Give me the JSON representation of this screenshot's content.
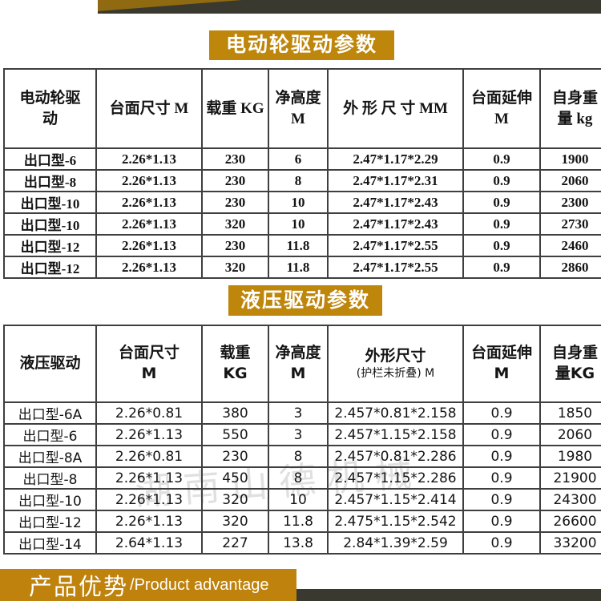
{
  "sections": {
    "electric": {
      "title": "电动轮驱动参数",
      "table": {
        "headers": [
          {
            "lines": [
              "电动轮驱",
              "动"
            ]
          },
          {
            "lines": [
              "台面尺寸 M"
            ]
          },
          {
            "lines": [
              "载重  KG"
            ]
          },
          {
            "lines": [
              "净高度",
              "M"
            ]
          },
          {
            "lines": [
              "外 形 尺 寸 MM"
            ]
          },
          {
            "lines": [
              "台面延伸",
              "M"
            ]
          },
          {
            "lines": [
              "自身重",
              "量 kg"
            ]
          }
        ],
        "rows": [
          [
            "出口型-6",
            "2.26*1.13",
            "230",
            "6",
            "2.47*1.17*2.29",
            "0.9",
            "1900"
          ],
          [
            "出口型-8",
            "2.26*1.13",
            "230",
            "8",
            "2.47*1.17*2.31",
            "0.9",
            "2060"
          ],
          [
            "出口型-10",
            "2.26*1.13",
            "230",
            "10",
            "2.47*1.17*2.43",
            "0.9",
            "2300"
          ],
          [
            "出口型-10",
            "2.26*1.13",
            "320",
            "10",
            "2.47*1.17*2.43",
            "0.9",
            "2730"
          ],
          [
            "出口型-12",
            "2.26*1.13",
            "230",
            "11.8",
            "2.47*1.17*2.55",
            "0.9",
            "2460"
          ],
          [
            "出口型-12",
            "2.26*1.13",
            "320",
            "11.8",
            "2.47*1.17*2.55",
            "0.9",
            "2860"
          ]
        ]
      }
    },
    "hydraulic": {
      "title": "液压驱动参数",
      "table": {
        "headers": [
          {
            "lines": [
              "液压驱动"
            ]
          },
          {
            "lines": [
              "台面尺寸",
              "M"
            ]
          },
          {
            "lines": [
              "载重",
              "KG"
            ]
          },
          {
            "lines": [
              "净高度",
              "M"
            ]
          },
          {
            "lines": [
              "外形尺寸",
              "(护栏未折叠) M"
            ]
          },
          {
            "lines": [
              "台面延伸",
              "M"
            ]
          },
          {
            "lines": [
              "自身重",
              "量KG"
            ]
          }
        ],
        "rows": [
          [
            "出口型-6A",
            "2.26*0.81",
            "380",
            "3",
            "2.457*0.81*2.158",
            "0.9",
            "1850"
          ],
          [
            "出口型-6",
            "2.26*1.13",
            "550",
            "3",
            "2.457*1.15*2.158",
            "0.9",
            "2060"
          ],
          [
            "出口型-8A",
            "2.26*0.81",
            "230",
            "8",
            "2.457*0.81*2.286",
            "0.9",
            "1980"
          ],
          [
            "出口型-8",
            "2.26*1.13",
            "450",
            "8",
            "2.457*1.15*2.286",
            "0.9",
            "21900"
          ],
          [
            "出口型-10",
            "2.26*1.13",
            "320",
            "10",
            "2.457*1.15*2.414",
            "0.9",
            "24300"
          ],
          [
            "出口型-12",
            "2.26*1.13",
            "320",
            "11.8",
            "2.475*1.15*2.542",
            "0.9",
            "26600"
          ],
          [
            "出口型-14",
            "2.64*1.13",
            "227",
            "13.8",
            "2.84*1.39*2.59",
            "0.9",
            "33200"
          ]
        ]
      }
    }
  },
  "watermark": "湖南山德机械",
  "footer": {
    "title_zh": "产品优势",
    "title_en": "/Product advantage"
  },
  "colors": {
    "accent_gold": "#be860b",
    "footer_gold": "#be820d",
    "dark_bar": "#3a392f",
    "border": "#3f3f3f"
  }
}
